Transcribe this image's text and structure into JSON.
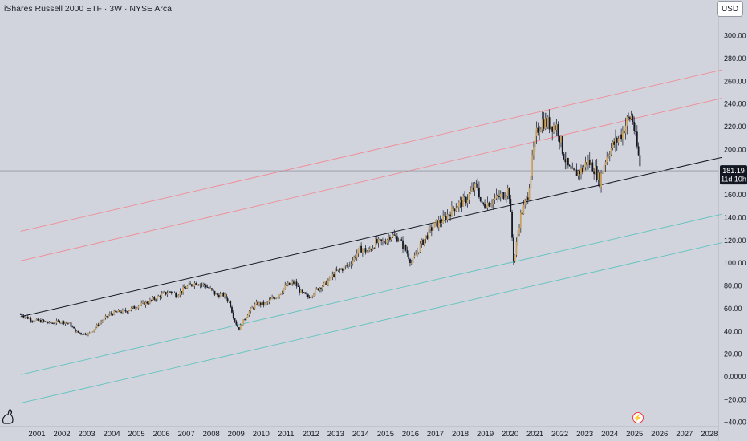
{
  "header": {
    "title": "iShares Russell 2000 ETF · 3W · NYSE Arca",
    "currency_label": "USD"
  },
  "price_label": {
    "price": "181.19",
    "countdown": "11d 10h"
  },
  "colors": {
    "up_candle": "#c8a160",
    "down_candle": "#131722",
    "upper_channel": "#f28b96",
    "lower_channel": "#5fc3c0",
    "median_line": "#131722",
    "price_line": "#9598a1",
    "price_label_bg": "#131722"
  },
  "icons": {
    "logo": "tradingview-dino-logo-icon",
    "lightning": "lightning-bolt-icon"
  },
  "chart_data": {
    "type": "candlestick",
    "title": "iShares Russell 2000 ETF · 3W · NYSE Arca",
    "xlabel": "",
    "ylabel": "",
    "ylim": [
      -40,
      310
    ],
    "xlim": [
      2000.5,
      2028.5
    ],
    "y_ticks": [
      -40,
      -20,
      0,
      20,
      40,
      60,
      80,
      100,
      120,
      140,
      160,
      180,
      200,
      220,
      240,
      260,
      280,
      300
    ],
    "y_tick_labels": [
      "−40.00",
      "−20.00",
      "0.0000",
      "20.00",
      "40.00",
      "60.00",
      "80.00",
      "100.00",
      "120.00",
      "140.00",
      "160.00",
      "180.00",
      "200.00",
      "220.00",
      "240.00",
      "260.00",
      "280.00",
      "300.00"
    ],
    "x_ticks": [
      2001,
      2002,
      2003,
      2004,
      2005,
      2006,
      2007,
      2008,
      2009,
      2010,
      2011,
      2012,
      2013,
      2014,
      2015,
      2016,
      2017,
      2018,
      2019,
      2020,
      2021,
      2022,
      2023,
      2024,
      2025,
      2026,
      2027,
      2028
    ],
    "x_tick_labels": [
      "2001",
      "2002",
      "2003",
      "2004",
      "2005",
      "2006",
      "2007",
      "2008",
      "2009",
      "2010",
      "2011",
      "2012",
      "2013",
      "2014",
      "2015",
      "2016",
      "2017",
      "2018",
      "2019",
      "2020",
      "2021",
      "2022",
      "2023",
      "2024",
      "2025",
      "2026",
      "2027",
      "2028"
    ],
    "grid": false,
    "last_price": 181.19,
    "close_series": {
      "x": [
        2000.35,
        2000.8,
        2001.2,
        2001.6,
        2001.9,
        2002.3,
        2002.55,
        2002.8,
        2003.1,
        2003.5,
        2003.9,
        2004.2,
        2004.6,
        2005.0,
        2005.5,
        2006.0,
        2006.35,
        2006.6,
        2007.0,
        2007.4,
        2007.8,
        2008.2,
        2008.5,
        2008.75,
        2008.9,
        2009.1,
        2009.5,
        2009.8,
        2010.2,
        2010.4,
        2010.7,
        2011.0,
        2011.35,
        2011.6,
        2011.9,
        2012.3,
        2012.6,
        2013.0,
        2013.5,
        2014.0,
        2014.3,
        2014.6,
        2014.9,
        2015.2,
        2015.5,
        2015.8,
        2016.05,
        2016.4,
        2016.9,
        2017.3,
        2017.8,
        2018.2,
        2018.5,
        2018.7,
        2018.85,
        2019.0,
        2019.3,
        2019.7,
        2019.95,
        2020.15,
        2020.4,
        2020.7,
        2020.95,
        2021.1,
        2021.3,
        2021.6,
        2021.9,
        2022.1,
        2022.3,
        2022.5,
        2022.7,
        2022.9,
        2023.1,
        2023.4,
        2023.6,
        2023.8,
        2024.0,
        2024.3,
        2024.5,
        2024.7,
        2024.9,
        2025.0,
        2025.15,
        2025.25
      ],
      "values": [
        55,
        50,
        49,
        47,
        49,
        47,
        40,
        38,
        38,
        47,
        55,
        57,
        58,
        62,
        66,
        72,
        75,
        72,
        79,
        83,
        80,
        72,
        72,
        65,
        52,
        42,
        57,
        64,
        64,
        68,
        72,
        80,
        83,
        74,
        70,
        78,
        82,
        92,
        98,
        113,
        110,
        118,
        118,
        125,
        122,
        112,
        100,
        116,
        132,
        138,
        150,
        155,
        165,
        168,
        150,
        152,
        155,
        160,
        165,
        100,
        140,
        158,
        200,
        218,
        225,
        222,
        220,
        200,
        185,
        178,
        180,
        182,
        190,
        183,
        172,
        190,
        200,
        208,
        215,
        225,
        230,
        215,
        195,
        181.19
      ]
    },
    "channel_lines": [
      {
        "role": "upper-outer",
        "x": [
          2000.35,
          2028.5
        ],
        "y": [
          128,
          270
        ]
      },
      {
        "role": "upper-inner",
        "x": [
          2000.35,
          2028.5
        ],
        "y": [
          102,
          245
        ]
      },
      {
        "role": "median",
        "x": [
          2000.35,
          2028.5
        ],
        "y": [
          53,
          193
        ]
      },
      {
        "role": "lower-inner",
        "x": [
          2000.35,
          2028.5
        ],
        "y": [
          2,
          143
        ]
      },
      {
        "role": "lower-outer",
        "x": [
          2000.35,
          2028.5
        ],
        "y": [
          -23,
          118
        ]
      }
    ]
  }
}
